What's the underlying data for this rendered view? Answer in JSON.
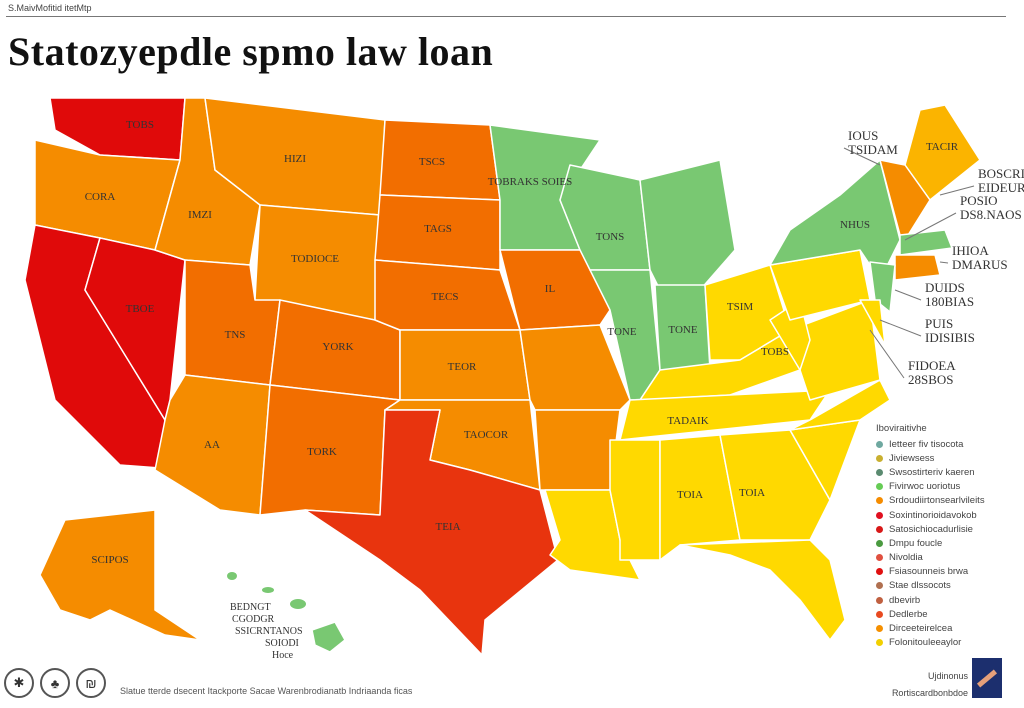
{
  "header": {
    "top_note": "S.MaivMofitid itetMtp",
    "title": "Statozyepdle spmo law loan"
  },
  "colors": {
    "red": "#e00a0a",
    "red_orange": "#e8340e",
    "dark_orange": "#f26e00",
    "orange": "#f58c00",
    "amber": "#fbb400",
    "yellow": "#ffd900",
    "green": "#79c872"
  },
  "states": [
    {
      "id": "wa",
      "color": "red",
      "label": "TOBS"
    },
    {
      "id": "or",
      "color": "orange",
      "label": "CORA"
    },
    {
      "id": "ca",
      "color": "red",
      "label": ""
    },
    {
      "id": "nv",
      "color": "red",
      "label": "TBOE"
    },
    {
      "id": "id",
      "color": "orange",
      "label": "IMZI"
    },
    {
      "id": "mt",
      "color": "orange",
      "label": "HIZI"
    },
    {
      "id": "wy",
      "color": "orange",
      "label": "TODIOCE"
    },
    {
      "id": "ut",
      "color": "dark_orange",
      "label": "TNS"
    },
    {
      "id": "az",
      "color": "orange",
      "label": "AA"
    },
    {
      "id": "co",
      "color": "dark_orange",
      "label": "YORK"
    },
    {
      "id": "nm",
      "color": "dark_orange",
      "label": "TORK"
    },
    {
      "id": "nd",
      "color": "dark_orange",
      "label": "TSCS"
    },
    {
      "id": "sd",
      "color": "dark_orange",
      "label": "TAGS"
    },
    {
      "id": "ne",
      "color": "dark_orange",
      "label": "TECS"
    },
    {
      "id": "ks",
      "color": "orange",
      "label": "TEOR"
    },
    {
      "id": "ok",
      "color": "orange",
      "label": "TAOCOR"
    },
    {
      "id": "tx",
      "color": "red_orange",
      "label": "TEIA"
    },
    {
      "id": "mn",
      "color": "green",
      "label": "TOBRAKS SOIES"
    },
    {
      "id": "ia",
      "color": "dark_orange",
      "label": "IL"
    },
    {
      "id": "mo",
      "color": "orange",
      "label": ""
    },
    {
      "id": "ar",
      "color": "orange",
      "label": ""
    },
    {
      "id": "la",
      "color": "yellow",
      "label": ""
    },
    {
      "id": "wi",
      "color": "green",
      "label": "TONS"
    },
    {
      "id": "mi",
      "color": "green",
      "label": ""
    },
    {
      "id": "il",
      "color": "green",
      "label": "TONE"
    },
    {
      "id": "in",
      "color": "green",
      "label": "TONE"
    },
    {
      "id": "oh",
      "color": "yellow",
      "label": "TSIM"
    },
    {
      "id": "ky",
      "color": "yellow",
      "label": "TADAIK"
    },
    {
      "id": "tn",
      "color": "yellow",
      "label": ""
    },
    {
      "id": "ms",
      "color": "yellow",
      "label": ""
    },
    {
      "id": "al",
      "color": "yellow",
      "label": "TOIA"
    },
    {
      "id": "ga",
      "color": "yellow",
      "label": "TOIA"
    },
    {
      "id": "fl",
      "color": "yellow",
      "label": ""
    },
    {
      "id": "sc",
      "color": "yellow",
      "label": ""
    },
    {
      "id": "nc",
      "color": "yellow",
      "label": ""
    },
    {
      "id": "va",
      "color": "yellow",
      "label": "TOBS"
    },
    {
      "id": "wv",
      "color": "yellow",
      "label": ""
    },
    {
      "id": "pa",
      "color": "yellow",
      "label": ""
    },
    {
      "id": "ny",
      "color": "green",
      "label": "NHUS"
    },
    {
      "id": "me",
      "color": "amber",
      "label": "TACIR"
    },
    {
      "id": "nh",
      "color": "orange",
      "label": ""
    },
    {
      "id": "ma",
      "color": "green",
      "label": ""
    },
    {
      "id": "ct",
      "color": "orange",
      "label": ""
    },
    {
      "id": "nj",
      "color": "green",
      "label": ""
    },
    {
      "id": "md",
      "color": "yellow",
      "label": ""
    },
    {
      "id": "ak",
      "color": "orange",
      "label": "SCIPOS"
    },
    {
      "id": "hi",
      "color": "green",
      "label": ""
    }
  ],
  "callouts": [
    {
      "l1": "IOUS",
      "l2": "TSIDAM"
    },
    {
      "l1": "BOSCRIO",
      "l2": "EIDEURS"
    },
    {
      "l1": "POSIO",
      "l2": "DS8.NAOS"
    },
    {
      "l1": "IHIOA",
      "l2": "DMARUS"
    },
    {
      "l1": "DUIDS",
      "l2": "180BIAS"
    },
    {
      "l1": "PUIS",
      "l2": "IDISIBIS"
    },
    {
      "l1": "FIDOEA",
      "l2": "28SBOS"
    }
  ],
  "hawaii_labels": [
    "BEDNGT",
    "CGODGR",
    "SSICRNTANOS",
    "SOIODI",
    "Hoce"
  ],
  "legend": {
    "title": "Iboviraitivhe",
    "items": [
      {
        "label": "Ietteer fiv tisocota",
        "color": "#6fa8a0"
      },
      {
        "label": "Jiviewsess",
        "color": "#c9b030"
      },
      {
        "label": "Swsostirteriv kaeren",
        "color": "#5a8a70"
      },
      {
        "label": "Fivirwoc uoriotus",
        "color": "#66cc55"
      },
      {
        "label": "Srdoudiirtonsearlvileits",
        "color": "#f58c00"
      },
      {
        "label": "Soxintinorioidavokob",
        "color": "#e01020"
      },
      {
        "label": "Satosichiocadurlisie",
        "color": "#d81818"
      },
      {
        "label": "Dmpu foucle",
        "color": "#4a9a40"
      },
      {
        "label": "Nivoldia",
        "color": "#e05040"
      },
      {
        "label": "Fsiasounneis brwa",
        "color": "#e01010"
      },
      {
        "label": "Stae dlssocots",
        "color": "#b07050"
      },
      {
        "label": "dbevirb",
        "color": "#c06040"
      },
      {
        "label": "Dedlerbe",
        "color": "#e84a20"
      },
      {
        "label": "Dirceeteirelcea",
        "color": "#f59000"
      },
      {
        "label": "Folonitouleeaylor",
        "color": "#f2d000"
      }
    ]
  },
  "footer": {
    "icons": [
      "tool-icon",
      "tree-icon",
      "badge-icon"
    ],
    "icon_glyphs": [
      "✱",
      "♣",
      "₪"
    ],
    "note": "Slatue tterde dsecent Itackporte Sacae Warenbrodianatb Indriaanda ficas",
    "brand_line1": "Ujdinonus",
    "brand_line2": "Rortiscardbonbdoe"
  }
}
